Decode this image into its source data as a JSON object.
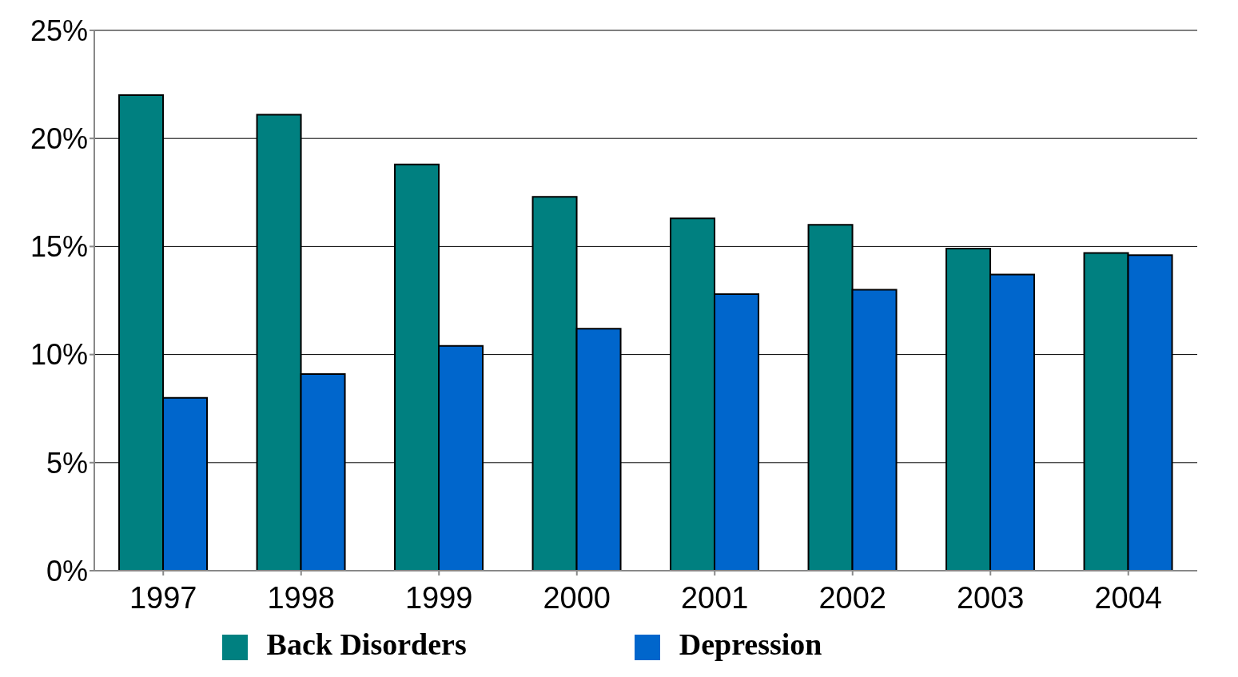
{
  "chart_data": {
    "type": "bar",
    "categories": [
      "1997",
      "1998",
      "1999",
      "2000",
      "2001",
      "2002",
      "2003",
      "2004"
    ],
    "series": [
      {
        "name": "Back Disorders",
        "color": "#008080",
        "values": [
          22.0,
          21.1,
          18.8,
          17.3,
          16.3,
          16.0,
          14.9,
          14.7
        ]
      },
      {
        "name": "Depression",
        "color": "#0066cc",
        "values": [
          8.0,
          9.1,
          10.4,
          11.2,
          12.8,
          13.0,
          13.7,
          14.6
        ]
      }
    ],
    "ylim": [
      0,
      25
    ],
    "yticks": [
      {
        "value": 0,
        "label": "0%"
      },
      {
        "value": 5,
        "label": "5%"
      },
      {
        "value": 10,
        "label": "10%"
      },
      {
        "value": 15,
        "label": "15%"
      },
      {
        "value": 20,
        "label": "20%"
      },
      {
        "value": 25,
        "label": "25%"
      }
    ],
    "grid": "y",
    "legend": "bottom"
  }
}
